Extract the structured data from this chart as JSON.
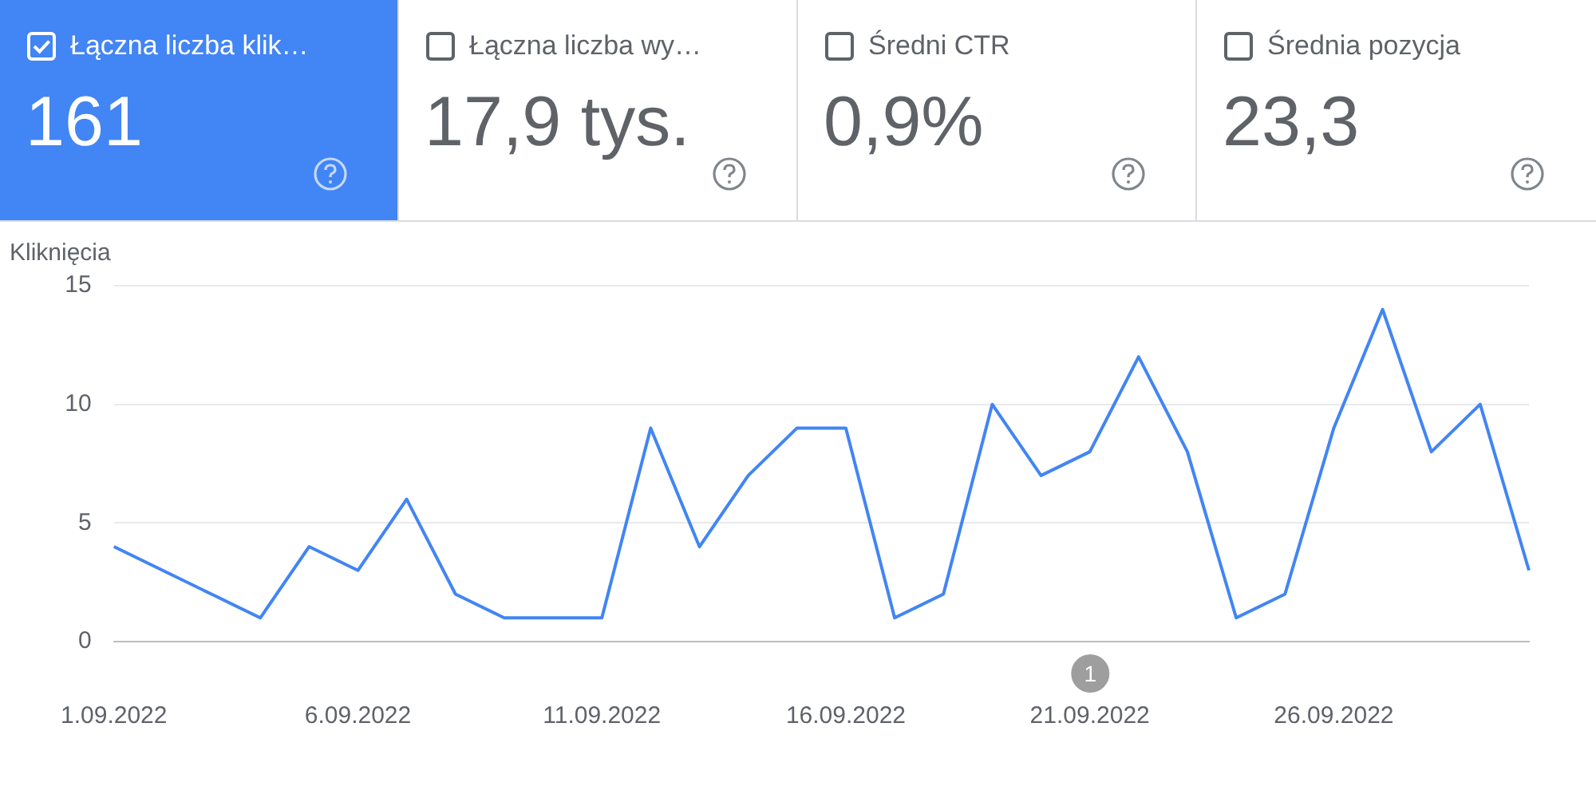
{
  "chart_data": [
    {
      "type": "other",
      "annotations": [
        "Łączna liczba klik…",
        "161",
        "Łączna liczba wy…",
        "17,9 tys.",
        "Średni CTR",
        "0,9%",
        "Średnia pozycja",
        "23,3"
      ]
    },
    {
      "type": "line",
      "ylabel": "Kliknięcia",
      "categories": [
        "1.09.2022",
        null,
        null,
        null,
        null,
        "6.09.2022",
        null,
        null,
        null,
        null,
        "11.09.2022",
        null,
        null,
        null,
        null,
        "16.09.2022",
        null,
        null,
        null,
        null,
        "21.09.2022",
        null,
        null,
        null,
        null,
        "26.09.2022",
        null,
        null,
        null,
        null
      ],
      "series": [
        {
          "color": "#4285f4",
          "values": [
            4,
            3,
            2,
            1,
            4,
            3,
            6,
            2,
            1,
            1,
            1,
            9,
            4,
            7,
            9,
            9,
            1,
            2,
            10,
            7,
            8,
            12,
            8,
            1,
            2,
            9,
            14,
            8,
            10,
            3
          ]
        }
      ],
      "ylim": [
        0,
        15
      ],
      "yticks": [
        0,
        5,
        10,
        15
      ],
      "grid": "y",
      "legend": false,
      "marker": "none",
      "line_style": "solid",
      "annotations": [
        "1"
      ]
    }
  ]
}
